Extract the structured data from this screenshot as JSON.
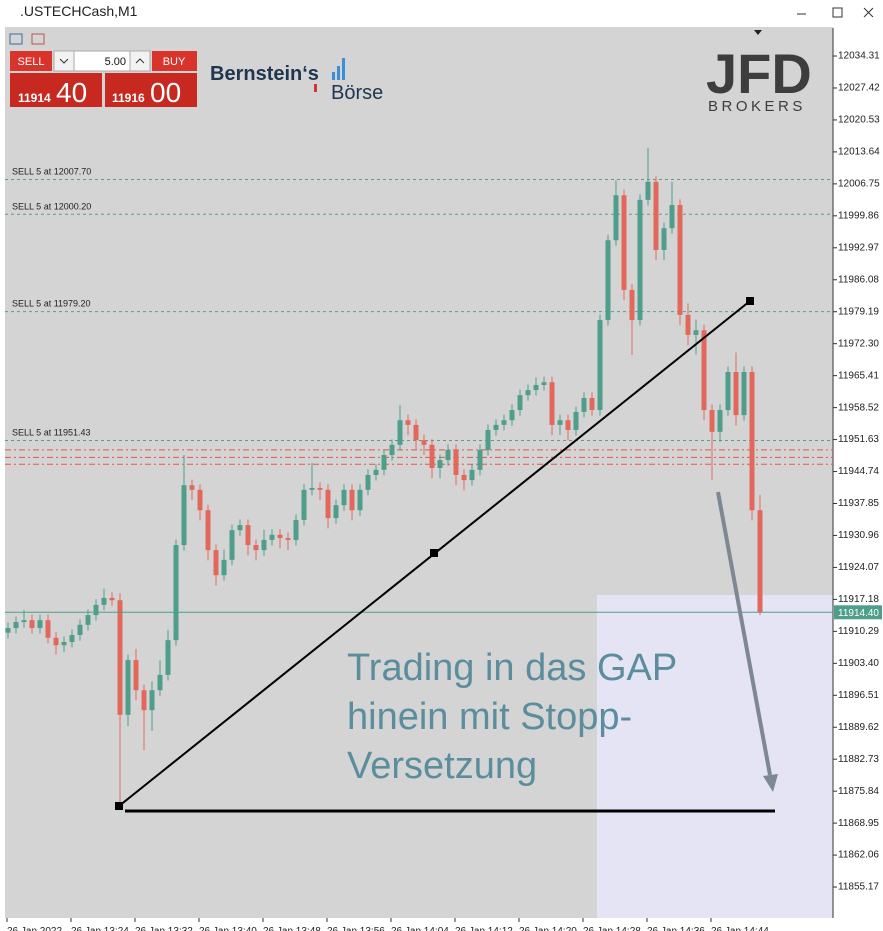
{
  "window": {
    "title": ".USTECHCash,M1"
  },
  "trade_panel": {
    "sell": "SELL",
    "volume": "5.00",
    "buy": "BUY",
    "bid_main": "11914",
    "bid_pips": "40",
    "ask_main": "11916",
    "ask_pips": "00"
  },
  "logos": {
    "bernstein": "Bernstein‘s",
    "boerse": "Börse",
    "jfd": "JFD",
    "jfd_sub": "BROKERS"
  },
  "chart_data": {
    "type": "candlestick",
    "up_color": "#4f9e8c",
    "down_color": "#e2685c",
    "open": [
      11910.0,
      11911.0,
      11912.3,
      11912.7,
      11911.0,
      11912.7,
      11908.9,
      11907.3,
      11908.0,
      11909.5,
      11911.7,
      11913.8,
      11916.0,
      11917.5,
      11917.0,
      11892.3,
      11904.1,
      11897.6,
      11893.3,
      11897.6,
      11900.9,
      11908.4,
      11928.9,
      11941.8,
      11940.8,
      11936.4,
      11927.8,
      11922.4,
      11925.7,
      11932.1,
      11933.2,
      11928.9,
      11927.8,
      11930.0,
      11931.1,
      11930.4,
      11930.0,
      11934.3,
      11940.8,
      11941.2,
      11940.8,
      11934.7,
      11937.5,
      11940.8,
      11936.4,
      11940.8,
      11944.0,
      11945.1,
      11948.3,
      11950.5,
      11955.8,
      11954.8,
      11951.5,
      11950.5,
      11945.5,
      11947.2,
      11949.4,
      11944.0,
      11942.9,
      11945.1,
      11949.4,
      11953.7,
      11954.8,
      11955.8,
      11958.0,
      11961.2,
      11962.3,
      11963.4,
      11964.0,
      11954.8,
      11955.8,
      11953.7,
      11957.6,
      11960.6,
      11958.0,
      11977.4,
      11994.6,
      12004.3,
      11983.9,
      11977.4,
      12003.3,
      12007.2,
      11992.5,
      11997.2,
      12002.2,
      11978.5,
      11974.2,
      11975.2,
      11958.0,
      11953.3,
      11958.0,
      11966.2,
      11956.9,
      11966.2,
      11936.4
    ],
    "high": [
      11912.2,
      11913.5,
      11914.9,
      11913.9,
      11913.9,
      11913.9,
      11910.1,
      11909.2,
      11910.7,
      11912.9,
      11915.0,
      11917.2,
      11919.5,
      11918.7,
      11918.5,
      11905.3,
      11906.5,
      11898.8,
      11899.5,
      11904.0,
      11910.6,
      11930.1,
      11948.3,
      11943.0,
      11942.0,
      11937.6,
      11929.0,
      11927.9,
      11933.3,
      11934.4,
      11934.4,
      11930.1,
      11932.2,
      11932.3,
      11932.3,
      11931.6,
      11935.5,
      11942.0,
      11946.6,
      11942.4,
      11942.0,
      11938.7,
      11942.0,
      11942.0,
      11942.0,
      11945.2,
      11946.3,
      11949.5,
      11951.7,
      11959.0,
      11957.0,
      11956.0,
      11952.7,
      11951.7,
      11948.4,
      11950.6,
      11950.6,
      11945.2,
      11946.3,
      11950.6,
      11954.9,
      11956.0,
      11957.0,
      11959.2,
      11962.4,
      11963.5,
      11965.0,
      11965.2,
      11965.2,
      11957.0,
      11957.0,
      11958.8,
      11961.8,
      11961.8,
      11978.6,
      11995.8,
      12007.5,
      12005.5,
      11985.1,
      12004.5,
      12014.5,
      12008.4,
      11998.4,
      12007.2,
      12003.4,
      11981.0,
      11977.5,
      11976.4,
      11959.2,
      11959.2,
      11967.4,
      11970.4,
      11967.4,
      11967.4,
      11939.7
    ],
    "low": [
      11908.8,
      11909.8,
      11911.1,
      11909.8,
      11909.8,
      11907.7,
      11905.3,
      11905.8,
      11906.8,
      11908.3,
      11910.5,
      11912.6,
      11914.8,
      11915.8,
      11872.2,
      11889.9,
      11895.4,
      11884.7,
      11888.8,
      11896.4,
      11899.7,
      11907.2,
      11927.7,
      11938.6,
      11934.2,
      11925.6,
      11920.2,
      11921.2,
      11924.5,
      11930.9,
      11926.7,
      11925.6,
      11926.6,
      11928.8,
      11928.2,
      11927.8,
      11928.8,
      11933.1,
      11939.6,
      11938.6,
      11932.5,
      11933.5,
      11936.3,
      11934.2,
      11935.2,
      11939.6,
      11942.8,
      11943.9,
      11947.1,
      11949.3,
      11952.6,
      11949.3,
      11948.3,
      11943.3,
      11943.3,
      11946.0,
      11941.8,
      11940.7,
      11941.7,
      11943.9,
      11948.2,
      11952.5,
      11953.6,
      11954.6,
      11956.8,
      11960.0,
      11961.1,
      11962.2,
      11952.6,
      11952.6,
      11951.5,
      11952.5,
      11956.4,
      11956.8,
      11956.8,
      11976.2,
      11993.4,
      11981.7,
      11969.9,
      11976.2,
      12002.1,
      11990.3,
      11990.3,
      11996.0,
      11976.3,
      11972.0,
      11970.0,
      11955.8,
      11942.9,
      11951.1,
      11956.8,
      11954.7,
      11955.7,
      11934.2,
      11913.8
    ],
    "close": [
      11911.0,
      11912.3,
      11912.7,
      11911.0,
      11912.7,
      11908.9,
      11907.3,
      11908.0,
      11909.5,
      11911.7,
      11913.8,
      11916.0,
      11917.5,
      11917.0,
      11892.3,
      11904.1,
      11897.6,
      11893.3,
      11897.6,
      11900.9,
      11908.4,
      11928.9,
      11941.8,
      11940.8,
      11936.4,
      11927.8,
      11922.4,
      11925.7,
      11932.1,
      11933.2,
      11928.9,
      11927.8,
      11930.0,
      11931.1,
      11930.4,
      11930.0,
      11934.3,
      11940.8,
      11941.2,
      11940.8,
      11934.7,
      11937.5,
      11940.8,
      11936.4,
      11940.8,
      11944.0,
      11945.1,
      11948.3,
      11950.5,
      11955.8,
      11954.8,
      11951.5,
      11950.5,
      11945.5,
      11947.2,
      11949.4,
      11944.0,
      11942.9,
      11945.1,
      11949.4,
      11953.7,
      11954.8,
      11955.8,
      11958.0,
      11961.2,
      11962.3,
      11963.4,
      11964.0,
      11954.8,
      11955.8,
      11953.7,
      11957.6,
      11960.6,
      11958.0,
      11977.4,
      11994.6,
      12004.3,
      11983.9,
      11977.4,
      12003.3,
      12007.2,
      11992.5,
      11997.2,
      12002.2,
      11978.5,
      11974.2,
      11975.2,
      11958.0,
      11953.3,
      11958.0,
      11966.2,
      11956.9,
      11966.2,
      11936.4,
      11914.4
    ],
    "ylim": [
      11848.5,
      12040.35
    ],
    "yticks": [
      12034.31,
      12027.42,
      12020.53,
      12013.64,
      12006.75,
      11999.86,
      11992.97,
      11986.08,
      11979.19,
      {
        "value": 11972.3,
        "label": "11972.30"
      },
      11965.41,
      11958.52,
      11951.63,
      11944.74,
      11937.85,
      11930.96,
      11924.07,
      11917.18,
      11910.29,
      {
        "value": 11903.4,
        "label": "11903.40"
      },
      11896.51,
      11889.62,
      11882.73,
      11875.84,
      11868.95,
      11862.06,
      11855.17
    ],
    "xtick_labels": [
      "26 Jan 2022",
      "26 Jan 13:24",
      "26 Jan 13:32",
      "26 Jan 13:40",
      "26 Jan 13:48",
      "26 Jan 13:56",
      "26 Jan 14:04",
      "26 Jan 14:12",
      "26 Jan 14:20",
      "26 Jan 14:28",
      "26 Jan 14:36",
      "26 Jan 14:44"
    ],
    "orders": [
      {
        "label": "SELL 5 at 12007.70",
        "value": 12007.7
      },
      {
        "label": "SELL 5 at 12000.20",
        "value": 12000.2
      },
      {
        "label": "SELL 5 at 11979.20",
        "value": 11979.2
      },
      {
        "label": "SELL 5 at 11951.43",
        "value": 11951.43
      }
    ],
    "stop_lines": [
      11949.4,
      11947.8,
      11946.3
    ],
    "current_price": {
      "value": 11914.4,
      "label": "11914.40"
    },
    "annotation": [
      "Trading in das GAP",
      "hinein mit Stopp-",
      "Versetzung"
    ]
  }
}
